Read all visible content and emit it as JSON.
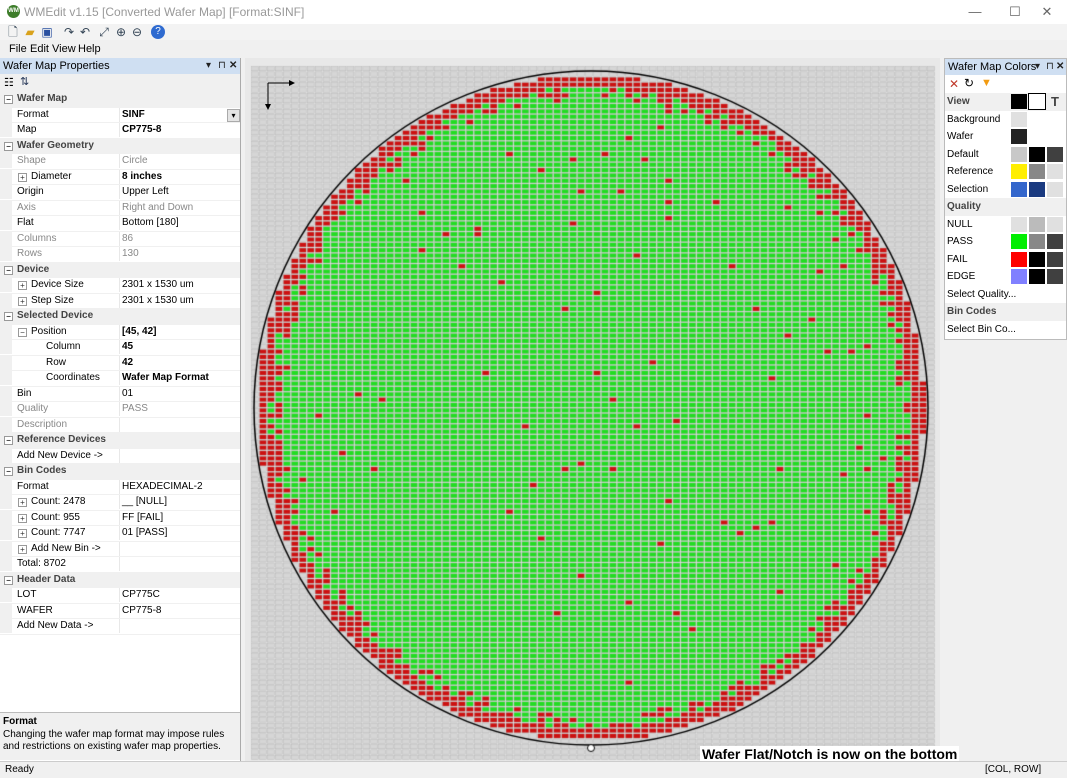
{
  "window": {
    "title": "WMEdit v1.15 [Converted Wafer Map] [Format:SINF]",
    "app_icon_text": "WM",
    "controls": [
      "—",
      "☐",
      "✕"
    ]
  },
  "toolbar": {
    "icons": [
      "new-icon",
      "open-icon",
      "save-icon",
      "redo-icon",
      "undo-icon",
      "fit-icon",
      "zoom-in-icon",
      "zoom-out-icon",
      "help-icon"
    ]
  },
  "menu": [
    "File",
    "Edit",
    "View",
    "Help"
  ],
  "properties_panel": {
    "title": "Wafer Map Properties",
    "rows": [
      {
        "type": "cat",
        "key": "Wafer Map"
      },
      {
        "type": "prop",
        "key": "Format",
        "value": "SINF",
        "bold": true,
        "dropdown": true
      },
      {
        "type": "prop",
        "key": "Map",
        "value": "CP775-8",
        "bold": true
      },
      {
        "type": "cat",
        "key": "Wafer Geometry"
      },
      {
        "type": "prop",
        "key": "Shape",
        "value": "Circle",
        "disabled": true
      },
      {
        "type": "prop",
        "key": "Diameter",
        "value": "8 inches",
        "bold": true,
        "expander": true
      },
      {
        "type": "prop",
        "key": "Origin",
        "value": "Upper Left"
      },
      {
        "type": "prop",
        "key": "Axis",
        "value": "Right and Down",
        "disabled": true
      },
      {
        "type": "prop",
        "key": "Flat",
        "value": "Bottom [180]"
      },
      {
        "type": "prop",
        "key": "Columns",
        "value": "86",
        "disabled": true
      },
      {
        "type": "prop",
        "key": "Rows",
        "value": "130",
        "disabled": true
      },
      {
        "type": "cat",
        "key": "Device"
      },
      {
        "type": "prop",
        "key": "Device Size",
        "value": "2301 x 1530 um",
        "expander": true
      },
      {
        "type": "prop",
        "key": "Step Size",
        "value": "2301 x 1530 um",
        "expander": true
      },
      {
        "type": "cat",
        "key": "Selected Device"
      },
      {
        "type": "prop",
        "key": "Position",
        "value": "[45, 42]",
        "bold": true,
        "expander": true,
        "expanded": true
      },
      {
        "type": "prop",
        "key": "Column",
        "value": "45",
        "bold": true,
        "indent": true
      },
      {
        "type": "prop",
        "key": "Row",
        "value": "42",
        "bold": true,
        "indent": true
      },
      {
        "type": "prop",
        "key": "Coordinates",
        "value": "Wafer Map Format",
        "bold": true,
        "indent": true
      },
      {
        "type": "prop",
        "key": "Bin",
        "value": "01"
      },
      {
        "type": "prop",
        "key": "Quality",
        "value": "PASS",
        "disabled": true
      },
      {
        "type": "prop",
        "key": "Description",
        "value": "",
        "disabled": true
      },
      {
        "type": "cat",
        "key": "Reference Devices"
      },
      {
        "type": "prop",
        "key": "Add New Device ->",
        "value": ""
      },
      {
        "type": "cat",
        "key": "Bin Codes"
      },
      {
        "type": "prop",
        "key": "Format",
        "value": "HEXADECIMAL-2"
      },
      {
        "type": "prop",
        "key": "Count: 2478",
        "value": "__ [NULL]",
        "expander": true
      },
      {
        "type": "prop",
        "key": "Count: 955",
        "value": "FF [FAIL]",
        "expander": true
      },
      {
        "type": "prop",
        "key": "Count: 7747",
        "value": "01 [PASS]",
        "expander": true
      },
      {
        "type": "prop",
        "key": "Add New Bin ->",
        "value": "",
        "expander": true
      },
      {
        "type": "prop",
        "key": "Total: 8702",
        "value": ""
      },
      {
        "type": "cat",
        "key": "Header Data"
      },
      {
        "type": "prop",
        "key": "LOT",
        "value": "CP775C"
      },
      {
        "type": "prop",
        "key": "WAFER",
        "value": "CP775-8"
      },
      {
        "type": "prop",
        "key": "Add New Data ->",
        "value": ""
      }
    ],
    "description_title": "Format",
    "description_text": "Changing the wafer map format may impose rules and restrictions on existing wafer map properties."
  },
  "wafer_map": {
    "columns": 86,
    "rows": 130,
    "selected_col": 45,
    "selected_row": 42,
    "colors": {
      "pass": "#22dd22",
      "fail": "#cc1111",
      "null": "#d6d6d6",
      "grid": "#b0b0b0",
      "background": "#e8e8e8",
      "outline": "#000000"
    },
    "caption": "Wafer Flat/Notch is now on the bottom"
  },
  "colors_panel": {
    "title": "Wafer Map Colors",
    "tool_icons": [
      "close-icon",
      "refresh-icon",
      "filter-icon"
    ],
    "rows": [
      {
        "type": "sec",
        "label": "View",
        "swatches": [
          "#000000",
          "#ffffff",
          "text"
        ]
      },
      {
        "type": "row",
        "label": "Background",
        "swatches": [
          "#e0e0e0"
        ]
      },
      {
        "type": "row",
        "label": "Wafer",
        "swatches": [
          "#222222"
        ]
      },
      {
        "type": "row",
        "label": "Default",
        "swatches": [
          "#c8c8c8",
          "#000000",
          "#404040"
        ]
      },
      {
        "type": "row",
        "label": "Reference",
        "swatches": [
          "#ffee00",
          "#888888",
          "#e0e0e0"
        ]
      },
      {
        "type": "row",
        "label": "Selection",
        "swatches": [
          "#3366cc",
          "#1a3a80",
          "#e0e0e0"
        ]
      },
      {
        "type": "sec",
        "label": "Quality",
        "swatches": []
      },
      {
        "type": "row",
        "label": "NULL",
        "swatches": [
          "#e0e0e0",
          "#bbbbbb",
          "#e0e0e0"
        ]
      },
      {
        "type": "row",
        "label": "PASS",
        "swatches": [
          "#00ee00",
          "#888888",
          "#404040"
        ]
      },
      {
        "type": "row",
        "label": "FAIL",
        "swatches": [
          "#ff0000",
          "#000000",
          "#404040"
        ]
      },
      {
        "type": "row",
        "label": "EDGE",
        "swatches": [
          "#8080ff",
          "#000000",
          "#404040"
        ]
      },
      {
        "type": "row",
        "label": "Select Quality...",
        "swatches": []
      },
      {
        "type": "sec",
        "label": "Bin Codes",
        "swatches": []
      },
      {
        "type": "row",
        "label": "Select Bin Co...",
        "swatches": []
      }
    ]
  },
  "status": {
    "left": "Ready",
    "right": "[COL, ROW]"
  }
}
